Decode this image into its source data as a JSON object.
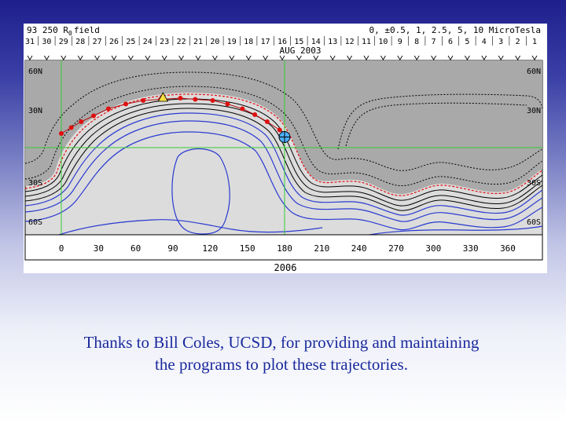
{
  "figure": {
    "header_left": "93 250 R",
    "header_sub": "0",
    "header_left_suffix": "field",
    "header_right": "0, ±0.5, 1, 2.5, 5, 10 MicroTesla",
    "day_ticks": [
      "31",
      "30",
      "29",
      "28",
      "27",
      "26",
      "25",
      "24",
      "23",
      "22",
      "21",
      "20",
      "19",
      "18",
      "17",
      "16",
      "15",
      "14",
      "13",
      "12",
      "11",
      "10",
      "9",
      "8",
      "7",
      "6",
      "5",
      "4",
      "3",
      "2",
      "1"
    ],
    "month_label": "AUG 2003",
    "lat_labels_left": [
      "60N",
      "30N",
      "30S",
      "60S"
    ],
    "lat_labels_right": [
      "60N",
      "30N",
      "30S",
      "60S"
    ],
    "lon_ticks": [
      "0",
      "30",
      "60",
      "90",
      "120",
      "150",
      "180",
      "210",
      "240",
      "270",
      "300",
      "330",
      "360"
    ],
    "year_label": "2006"
  },
  "caption": {
    "line1": "Thanks to Bill Coles, UCSD, for providing and maintaining",
    "line2": "the programs to plot these trajectories."
  },
  "colors": {
    "dark_region": "#a9a9a9",
    "light_region": "#dcdcdc",
    "grid": "#33cc33",
    "contour_blue": "#2a3ad0",
    "trajectory": "#e01010",
    "caption": "#1a2a9c"
  },
  "trajectory": {
    "points_lonlat": [
      [
        0,
        12
      ],
      [
        8,
        17
      ],
      [
        16,
        22
      ],
      [
        26,
        27
      ],
      [
        38,
        33
      ],
      [
        52,
        37
      ],
      [
        66,
        40
      ],
      [
        80,
        41
      ],
      [
        96,
        42
      ],
      [
        108,
        41
      ],
      [
        122,
        40
      ],
      [
        134,
        37
      ],
      [
        146,
        33
      ],
      [
        156,
        28
      ],
      [
        166,
        22
      ],
      [
        176,
        15
      ]
    ],
    "marker_earth_lonlat": [
      82,
      42
    ],
    "marker_target_lonlat": [
      180,
      9
    ]
  }
}
